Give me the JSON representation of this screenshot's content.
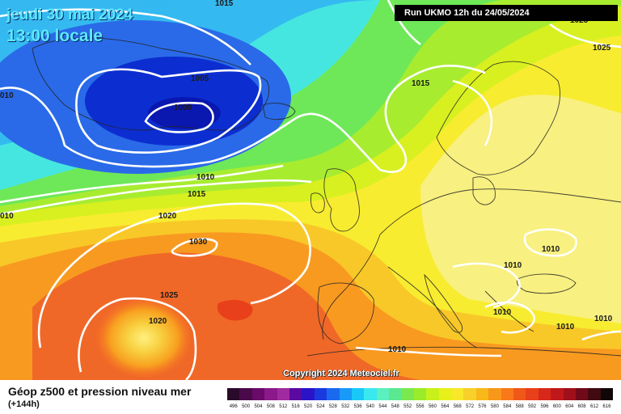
{
  "header": {
    "date_line": "jeudi 30 mai 2024",
    "time_line": "13:00 locale",
    "run_info": "Run UKMO 12h du 24/05/2024"
  },
  "copyright": "Copyright 2024 Meteociel.fr",
  "footer": {
    "title": "Géop z500 et pression niveau mer",
    "lead_time": "(+144h)"
  },
  "isobar_labels": [
    {
      "text": "1015",
      "id": "label-1015-top"
    },
    {
      "text": "1025",
      "id": "label-1025-top-right"
    },
    {
      "text": "1025",
      "id": "label-1025-right"
    },
    {
      "text": "1005",
      "id": "label-1005"
    },
    {
      "text": "1000",
      "id": "label-1000"
    },
    {
      "text": "1015",
      "id": "label-1015-north-sea"
    },
    {
      "text": "010",
      "id": "label-010-left-top"
    },
    {
      "text": "1010",
      "id": "label-1010-atlantic"
    },
    {
      "text": "1015",
      "id": "label-1015-atlantic"
    },
    {
      "text": "1020",
      "id": "label-1020-atlantic"
    },
    {
      "text": "010",
      "id": "label-010-left-mid"
    },
    {
      "text": "1030",
      "id": "label-1030"
    },
    {
      "text": "1025",
      "id": "label-1025-azores"
    },
    {
      "text": "1020",
      "id": "label-1020-south"
    },
    {
      "text": "1010",
      "id": "label-1010-russia"
    },
    {
      "text": "1010",
      "id": "label-1010-balkans"
    },
    {
      "text": "1010",
      "id": "label-1010-greece"
    },
    {
      "text": "1010",
      "id": "label-1010-turkey"
    },
    {
      "text": "1010",
      "id": "label-1010-east"
    },
    {
      "text": "1010",
      "id": "label-1010-africa"
    }
  ],
  "legend": {
    "values": [
      "496",
      "500",
      "504",
      "508",
      "512",
      "516",
      "520",
      "524",
      "528",
      "532",
      "536",
      "540",
      "544",
      "548",
      "552",
      "556",
      "560",
      "564",
      "568",
      "572",
      "576",
      "580",
      "584",
      "588",
      "592",
      "596",
      "600",
      "604",
      "608",
      "612",
      "616"
    ],
    "colors": [
      "#2a0a2a",
      "#4a0a4a",
      "#6a0a6a",
      "#8a1a8a",
      "#a02aa0",
      "#5a0aa0",
      "#2a14c8",
      "#1a3ae0",
      "#1a6af0",
      "#1a9af8",
      "#1ac8f8",
      "#3ae8f0",
      "#5af0c0",
      "#5ae890",
      "#7ae850",
      "#9aec2a",
      "#c8f01a",
      "#e8f01a",
      "#f8e82a",
      "#f8d02a",
      "#f8b81a",
      "#f8981a",
      "#f8781a",
      "#f0581a",
      "#e8401a",
      "#d8281a",
      "#c0181a",
      "#a0101a",
      "#700a1a",
      "#400a10",
      "#100808"
    ]
  }
}
